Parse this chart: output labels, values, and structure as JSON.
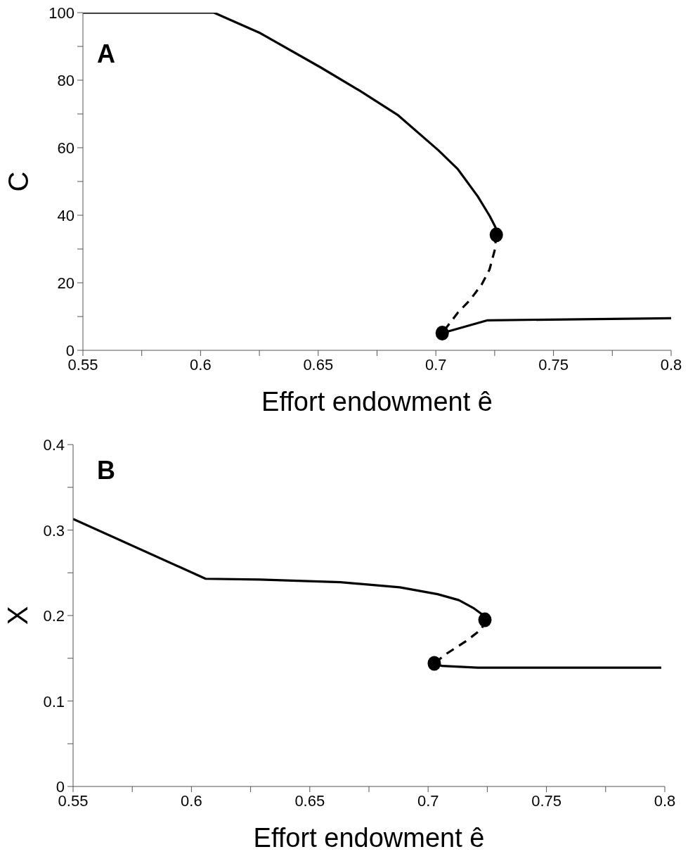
{
  "chart_data": [
    {
      "type": "line",
      "xlabel": "Effort endowment ê",
      "ylabel": "C",
      "annotations": [
        "A"
      ],
      "xlim": [
        0.55,
        0.8
      ],
      "ylim": [
        0,
        100
      ],
      "xticks": [
        0.55,
        {
          "value": 0.575,
          "label": null
        },
        0.6,
        {
          "value": 0.625,
          "label": null
        },
        0.65,
        {
          "value": 0.675,
          "label": null
        },
        0.7,
        {
          "value": 0.725,
          "label": null
        },
        0.75,
        {
          "value": 0.775,
          "label": null
        },
        0.8
      ],
      "yticks": [
        0,
        {
          "value": 10,
          "label": null
        },
        20,
        {
          "value": 30,
          "label": null
        },
        40,
        {
          "value": 50,
          "label": null
        },
        60,
        {
          "value": 70,
          "label": null
        },
        80,
        {
          "value": 90,
          "label": null
        },
        100
      ],
      "grid": false,
      "series": [
        {
          "color": "#000000",
          "line_style": "solid",
          "marker": "none",
          "x": [
            0.55,
            0.6057,
            0.6255,
            0.651,
            0.6674,
            0.684,
            0.701,
            0.7094,
            0.7178,
            0.7228,
            0.7253,
            0.7257
          ],
          "values": [
            100,
            100,
            93.9,
            83.8,
            77.0,
            69.6,
            59.3,
            53.6,
            45.6,
            39.9,
            36.5,
            34.2
          ]
        },
        {
          "color": "#000000",
          "line_style": "dashed",
          "marker": "none",
          "x": [
            0.7257,
            0.725,
            0.7228,
            0.7194,
            0.7144,
            0.7094,
            0.7027
          ],
          "values": [
            34.2,
            29.6,
            23.9,
            19.4,
            14.8,
            11.2,
            5.1
          ]
        },
        {
          "color": "#000000",
          "line_style": "solid",
          "marker": "none",
          "x": [
            0.7027,
            0.722,
            0.8
          ],
          "values": [
            5.1,
            8.9,
            9.5
          ]
        },
        {
          "type": "scatter",
          "color": "#000000",
          "marker": "circle",
          "x": [
            0.7257,
            0.7027
          ],
          "values": [
            34.2,
            5.1
          ]
        }
      ]
    },
    {
      "type": "line",
      "xlabel": "Effort endowment ê",
      "ylabel": "X",
      "annotations": [
        "B"
      ],
      "xlim": [
        0.55,
        0.8
      ],
      "ylim": [
        0,
        0.4
      ],
      "xticks": [
        0.55,
        {
          "value": 0.575,
          "label": null
        },
        0.6,
        {
          "value": 0.625,
          "label": null
        },
        0.65,
        {
          "value": 0.675,
          "label": null
        },
        0.7,
        {
          "value": 0.725,
          "label": null
        },
        0.75,
        {
          "value": 0.775,
          "label": null
        },
        0.8
      ],
      "yticks": [
        0,
        {
          "value": 0.05,
          "label": null
        },
        0.1,
        {
          "value": 0.15,
          "label": null
        },
        0.2,
        {
          "value": 0.25,
          "label": null
        },
        0.3,
        {
          "value": 0.35,
          "label": null
        },
        0.4
      ],
      "grid": false,
      "series": [
        {
          "color": "#000000",
          "line_style": "solid",
          "marker": "none",
          "x": [
            0.55,
            0.606,
            0.629,
            0.663,
            0.688,
            0.704,
            0.713,
            0.719,
            0.723,
            0.724
          ],
          "values": [
            0.313,
            0.243,
            0.242,
            0.239,
            0.233,
            0.225,
            0.218,
            0.209,
            0.201,
            0.195
          ]
        },
        {
          "color": "#000000",
          "line_style": "dashed",
          "marker": "none",
          "x": [
            0.724,
            0.7226,
            0.716,
            0.7076,
            0.7026
          ],
          "values": [
            0.195,
            0.184,
            0.17,
            0.155,
            0.144
          ]
        },
        {
          "color": "#000000",
          "line_style": "solid",
          "marker": "none",
          "x": [
            0.7026,
            0.706,
            0.721,
            0.7985
          ],
          "values": [
            0.144,
            0.141,
            0.139,
            0.139
          ]
        },
        {
          "type": "scatter",
          "color": "#000000",
          "marker": "circle",
          "x": [
            0.724,
            0.7026
          ],
          "values": [
            0.195,
            0.144
          ]
        }
      ]
    }
  ]
}
